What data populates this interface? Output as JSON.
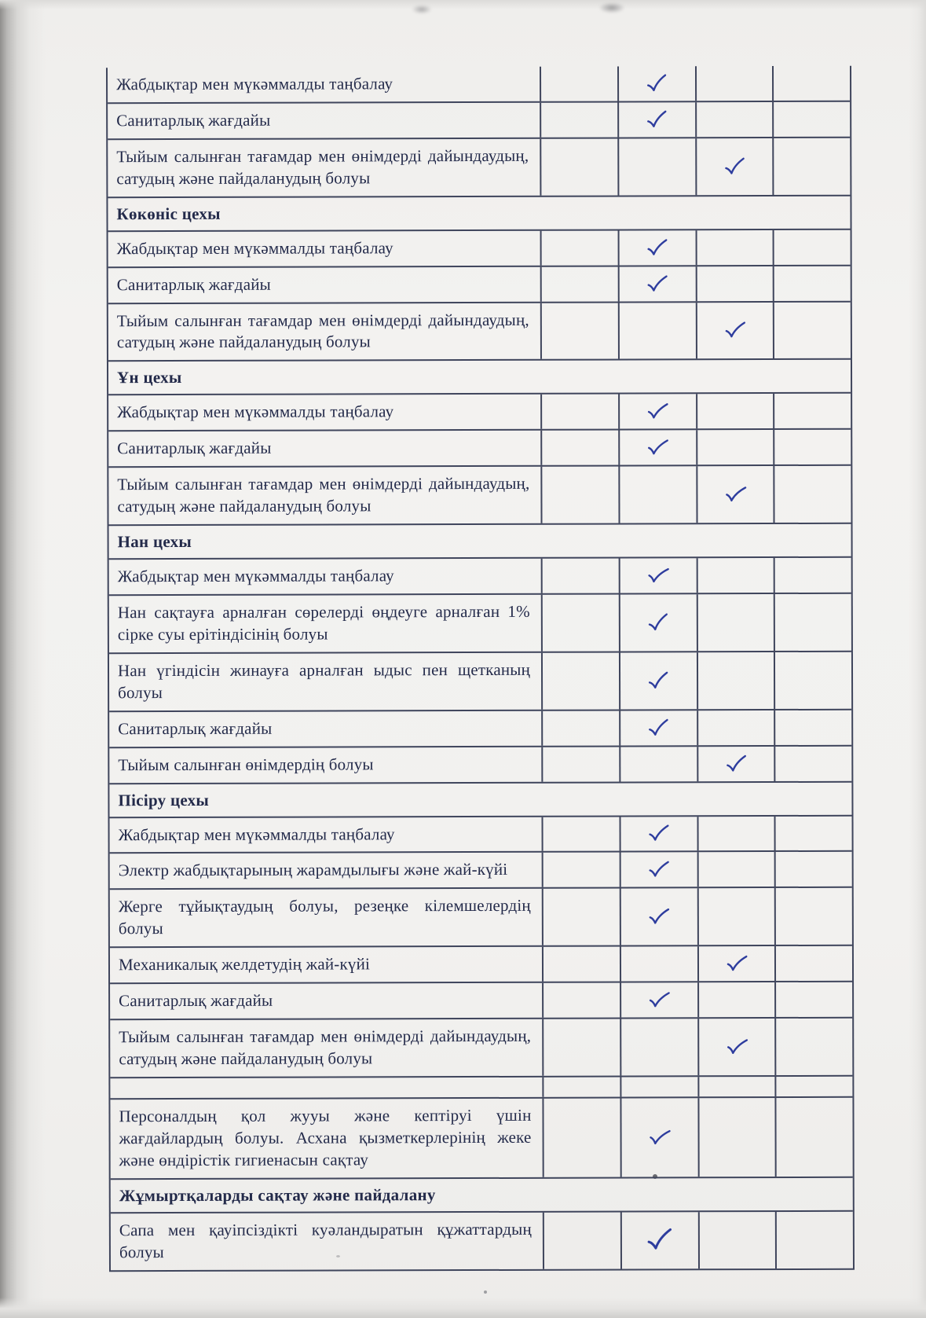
{
  "colors": {
    "paper": "#f2f1ef",
    "table_line": "#3f455c",
    "text_ink": "#232a4a",
    "check_ink": "#2e3d9e"
  },
  "icons": {
    "checkmark": "✓"
  },
  "table": {
    "check_columns": 4,
    "rows": [
      {
        "type": "item",
        "label": "Жабдықтар мен мүкәммалды таңбалау",
        "check_column": 2
      },
      {
        "type": "item",
        "label": "Санитарлық жағдайы",
        "check_column": 2
      },
      {
        "type": "item",
        "label": "Тыйым салынған тағамдар мен өнімдерді дайындаудың, сатудың және пайдаланудың болуы",
        "check_column": 3
      },
      {
        "type": "section",
        "label": "Көкөніс цехы"
      },
      {
        "type": "item",
        "label": "Жабдықтар мен мүкәммалды таңбалау",
        "check_column": 2
      },
      {
        "type": "item",
        "label": "Санитарлық жағдайы",
        "check_column": 2
      },
      {
        "type": "item",
        "label": "Тыйым салынған тағамдар мен өнімдерді дайындаудың, сатудың және пайдаланудың болуы",
        "check_column": 3
      },
      {
        "type": "section",
        "label": "Ұн цехы"
      },
      {
        "type": "item",
        "label": "Жабдықтар мен мүкәммалды таңбалау",
        "check_column": 2
      },
      {
        "type": "item",
        "label": "Санитарлық жағдайы",
        "check_column": 2
      },
      {
        "type": "item",
        "label": "Тыйым салынған тағамдар мен өнімдерді дайындаудың, сатудың және пайдаланудың болуы",
        "check_column": 3
      },
      {
        "type": "section",
        "label": "Нан цехы"
      },
      {
        "type": "item",
        "label": "Жабдықтар мен мүкәммалды таңбалау",
        "check_column": 2
      },
      {
        "type": "item",
        "label": "Нан сақтауға арналған сөрелерді өңдеуге арналған 1% сірке суы ерітіндісінің болуы",
        "check_column": 2
      },
      {
        "type": "item",
        "label": "Нан үгіндісін жинауға арналған ыдыс пен щетканың болуы",
        "check_column": 2
      },
      {
        "type": "item",
        "label": "Санитарлық жағдайы",
        "check_column": 2
      },
      {
        "type": "item",
        "label": "Тыйым салынған өнімдердің болуы",
        "check_column": 3
      },
      {
        "type": "section",
        "label": "Пісіру цехы"
      },
      {
        "type": "item",
        "label": "Жабдықтар мен мүкәммалды таңбалау",
        "check_column": 2
      },
      {
        "type": "item",
        "label": "Электр жабдықтарының жарамдылығы және жай-күйі",
        "check_column": 2
      },
      {
        "type": "item",
        "label": "Жерге тұйықтаудың болуы, резеңке кілемшелердің болуы",
        "check_column": 2
      },
      {
        "type": "item",
        "label": "Механикалық желдетудің жай-күйі",
        "check_column": 3
      },
      {
        "type": "item",
        "label": "Санитарлық жағдайы",
        "check_column": 2
      },
      {
        "type": "item",
        "label": "Тыйым салынған тағамдар мен өнімдерді дайындаудың, сатудың және пайдаланудың болуы",
        "check_column": 3
      },
      {
        "type": "empty",
        "label": "",
        "check_column": null
      },
      {
        "type": "item",
        "label": "Персоналдың қол жууы және кептіруі үшін жағдайлардың болуы. Асхана қызметкерлерінің жеке және өндірістік гигиенасын сақтау",
        "check_column": 2
      },
      {
        "type": "section",
        "label": "Жұмыртқаларды сақтау және пайдалану"
      },
      {
        "type": "item",
        "label": "Сапа мен қауіпсіздікті куәландыратын құжаттардың болуы",
        "check_column": 2
      }
    ]
  }
}
